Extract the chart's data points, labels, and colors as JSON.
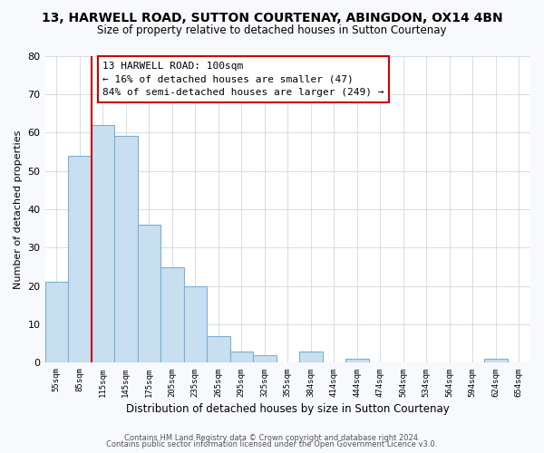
{
  "title_line1": "13, HARWELL ROAD, SUTTON COURTENAY, ABINGDON, OX14 4BN",
  "title_line2": "Size of property relative to detached houses in Sutton Courtenay",
  "bar_labels": [
    "55sqm",
    "85sqm",
    "115sqm",
    "145sqm",
    "175sqm",
    "205sqm",
    "235sqm",
    "265sqm",
    "295sqm",
    "325sqm",
    "355sqm",
    "384sqm",
    "414sqm",
    "444sqm",
    "474sqm",
    "504sqm",
    "534sqm",
    "564sqm",
    "594sqm",
    "624sqm",
    "654sqm"
  ],
  "bar_values": [
    21,
    54,
    62,
    59,
    36,
    25,
    20,
    7,
    3,
    2,
    0,
    3,
    0,
    1,
    0,
    0,
    0,
    0,
    0,
    1,
    0
  ],
  "bar_color": "#c8dff0",
  "bar_edge_color": "#7ab0d4",
  "marker_line_color": "#cc0000",
  "annotation_line1": "13 HARWELL ROAD: 100sqm",
  "annotation_line2": "← 16% of detached houses are smaller (47)",
  "annotation_line3": "84% of semi-detached houses are larger (249) →",
  "annotation_box_edge_color": "#cc0000",
  "xlabel": "Distribution of detached houses by size in Sutton Courtenay",
  "ylabel": "Number of detached properties",
  "ylim": [
    0,
    80
  ],
  "yticks": [
    0,
    10,
    20,
    30,
    40,
    50,
    60,
    70,
    80
  ],
  "footer_line1": "Contains HM Land Registry data © Crown copyright and database right 2024.",
  "footer_line2": "Contains public sector information licensed under the Open Government Licence v3.0.",
  "bg_color": "#f7f9fc",
  "plot_bg_color": "#ffffff",
  "grid_color": "#d0d8e0"
}
